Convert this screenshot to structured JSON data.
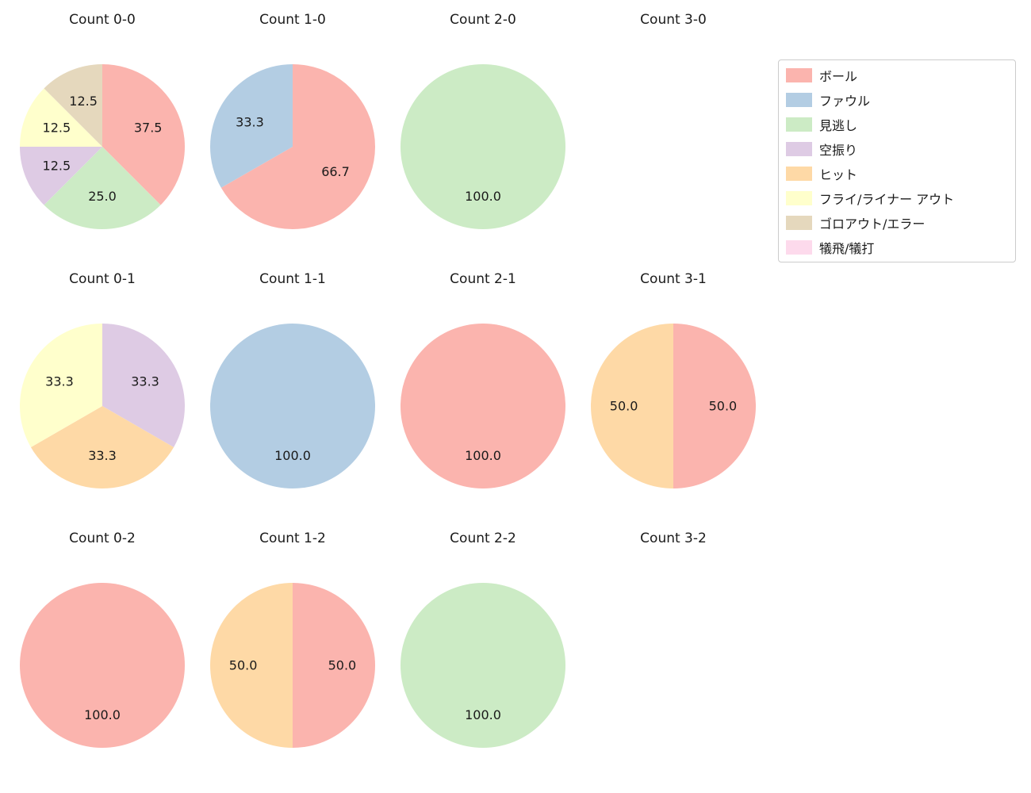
{
  "figure": {
    "background": "#ffffff"
  },
  "legend": {
    "items": [
      {
        "label": "ボール",
        "color": "#fbb4ae"
      },
      {
        "label": "ファウル",
        "color": "#b3cde3"
      },
      {
        "label": "見逃し",
        "color": "#ccebc5"
      },
      {
        "label": "空振り",
        "color": "#decbe4"
      },
      {
        "label": "ヒット",
        "color": "#fed9a6"
      },
      {
        "label": "フライ/ライナー アウト",
        "color": "#ffffcc"
      },
      {
        "label": "ゴロアウト/エラー",
        "color": "#e5d8bd"
      },
      {
        "label": "犠飛/犠打",
        "color": "#fddaec"
      }
    ]
  },
  "chart_data": [
    {
      "type": "pie",
      "title": "Count 0-0",
      "start_angle": "top",
      "direction": "clockwise",
      "label_format": "one_decimal",
      "slices": [
        {
          "label": "ボール",
          "value": 37.5
        },
        {
          "label": "見逃し",
          "value": 25.0
        },
        {
          "label": "空振り",
          "value": 12.5
        },
        {
          "label": "フライ/ライナー アウト",
          "value": 12.5
        },
        {
          "label": "ゴロアウト/エラー",
          "value": 12.5
        }
      ]
    },
    {
      "type": "pie",
      "title": "Count 1-0",
      "start_angle": "top",
      "direction": "clockwise",
      "label_format": "one_decimal",
      "slices": [
        {
          "label": "ボール",
          "value": 66.7
        },
        {
          "label": "ファウル",
          "value": 33.3
        }
      ]
    },
    {
      "type": "pie",
      "title": "Count 2-0",
      "start_angle": "top",
      "direction": "clockwise",
      "label_format": "one_decimal",
      "slices": [
        {
          "label": "見逃し",
          "value": 100.0
        }
      ]
    },
    {
      "type": "pie",
      "title": "Count 3-0",
      "start_angle": "top",
      "direction": "clockwise",
      "label_format": "one_decimal",
      "slices": []
    },
    {
      "type": "pie",
      "title": "Count 0-1",
      "start_angle": "top",
      "direction": "clockwise",
      "label_format": "one_decimal",
      "slices": [
        {
          "label": "空振り",
          "value": 33.3
        },
        {
          "label": "ヒット",
          "value": 33.3
        },
        {
          "label": "フライ/ライナー アウト",
          "value": 33.3
        }
      ]
    },
    {
      "type": "pie",
      "title": "Count 1-1",
      "start_angle": "top",
      "direction": "clockwise",
      "label_format": "one_decimal",
      "slices": [
        {
          "label": "ファウル",
          "value": 100.0
        }
      ]
    },
    {
      "type": "pie",
      "title": "Count 2-1",
      "start_angle": "top",
      "direction": "clockwise",
      "label_format": "one_decimal",
      "slices": [
        {
          "label": "ボール",
          "value": 100.0
        }
      ]
    },
    {
      "type": "pie",
      "title": "Count 3-1",
      "start_angle": "top",
      "direction": "clockwise",
      "label_format": "one_decimal",
      "slices": [
        {
          "label": "ボール",
          "value": 50.0
        },
        {
          "label": "ヒット",
          "value": 50.0
        }
      ]
    },
    {
      "type": "pie",
      "title": "Count 0-2",
      "start_angle": "top",
      "direction": "clockwise",
      "label_format": "one_decimal",
      "slices": [
        {
          "label": "ボール",
          "value": 100.0
        }
      ]
    },
    {
      "type": "pie",
      "title": "Count 1-2",
      "start_angle": "top",
      "direction": "clockwise",
      "label_format": "one_decimal",
      "slices": [
        {
          "label": "ボール",
          "value": 50.0
        },
        {
          "label": "ヒット",
          "value": 50.0
        }
      ]
    },
    {
      "type": "pie",
      "title": "Count 2-2",
      "start_angle": "top",
      "direction": "clockwise",
      "label_format": "one_decimal",
      "slices": [
        {
          "label": "見逃し",
          "value": 100.0
        }
      ]
    },
    {
      "type": "pie",
      "title": "Count 3-2",
      "start_angle": "top",
      "direction": "clockwise",
      "label_format": "one_decimal",
      "slices": []
    }
  ]
}
